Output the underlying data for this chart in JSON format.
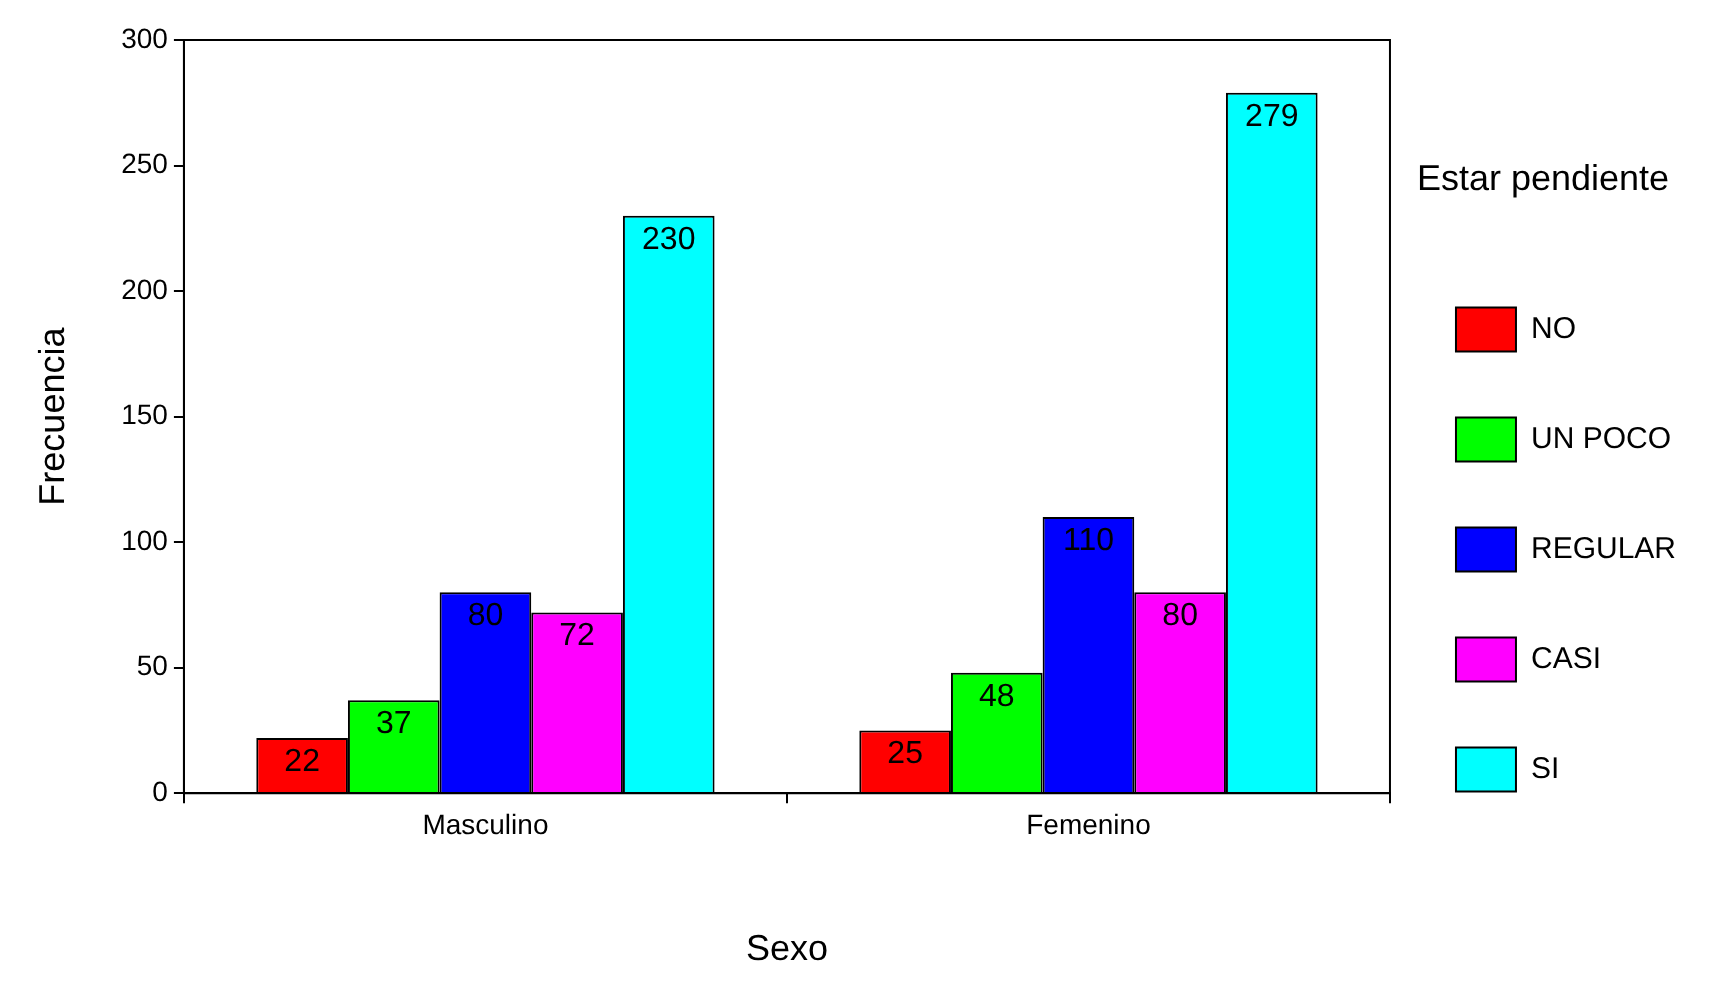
{
  "chart_data": {
    "type": "bar",
    "xlabel": "Sexo",
    "ylabel": "Frecuencia",
    "legend_title": "Estar pendiente",
    "categories": [
      "Masculino",
      "Femenino"
    ],
    "series": [
      {
        "name": "NO",
        "color": "#ff0000",
        "values": [
          22,
          25
        ]
      },
      {
        "name": "UN POCO",
        "color": "#00ff00",
        "values": [
          37,
          48
        ]
      },
      {
        "name": "REGULAR",
        "color": "#0000ff",
        "values": [
          80,
          110
        ]
      },
      {
        "name": "CASI",
        "color": "#ff00ff",
        "values": [
          72,
          80
        ]
      },
      {
        "name": "SI",
        "color": "#00ffff",
        "values": [
          230,
          279
        ]
      }
    ],
    "ylim": [
      0,
      300
    ],
    "yticks": [
      0,
      50,
      100,
      150,
      200,
      250,
      300
    ],
    "grid": false,
    "legend": "right",
    "data_labels": true
  }
}
